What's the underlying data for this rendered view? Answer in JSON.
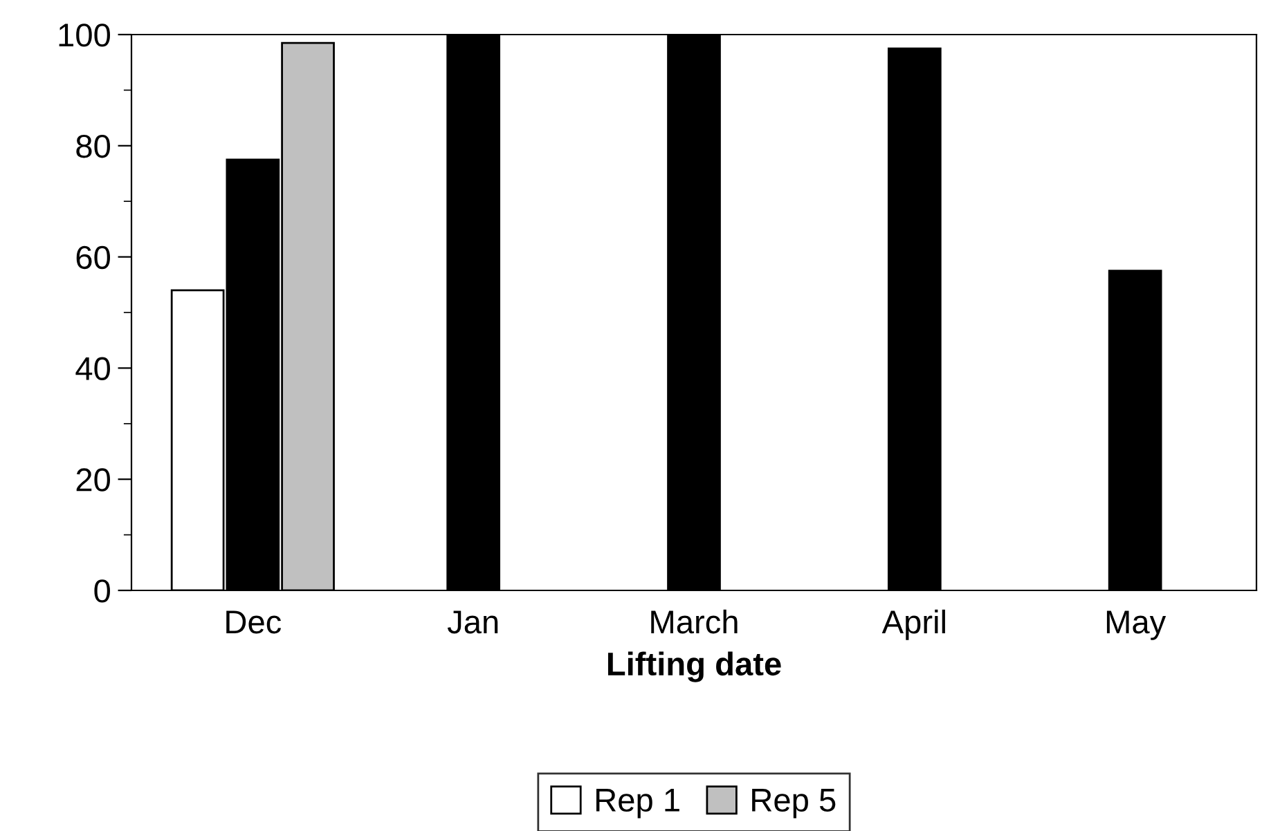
{
  "chart_data": {
    "type": "bar",
    "xlabel": "Lifting date",
    "categories": [
      "Dec",
      "Jan",
      "March",
      "April",
      "May"
    ],
    "series": [
      {
        "name": "Rep 1",
        "color": "#ffffff",
        "values": [
          54,
          null,
          null,
          null,
          null
        ]
      },
      {
        "color": "#000000",
        "values": [
          77.5,
          100,
          100,
          97.5,
          57.5
        ]
      },
      {
        "name": "Rep 5",
        "color": "#c0c0c0",
        "values": [
          98.5,
          null,
          null,
          null,
          null
        ]
      }
    ],
    "ylim": [
      0,
      100
    ],
    "yticks": [
      0,
      {
        "value": 10,
        "label": null
      },
      20,
      {
        "value": 30,
        "label": null
      },
      40,
      {
        "value": 50,
        "label": null
      },
      60,
      {
        "value": 70,
        "label": null
      },
      80,
      {
        "value": 90,
        "label": null
      },
      100
    ],
    "grid": false,
    "legend": "bottom"
  }
}
